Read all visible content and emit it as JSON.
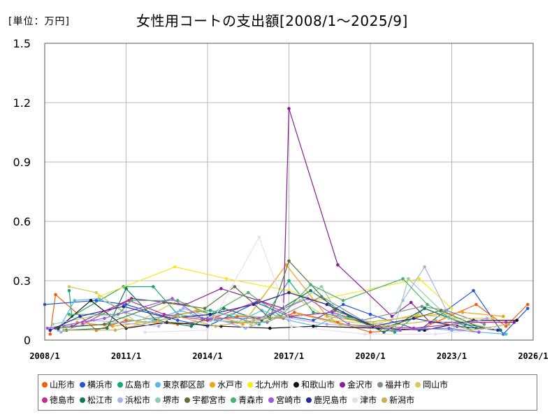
{
  "unit_label": "[単位：万円]",
  "colors": {
    "山形市": "#f25c0a",
    "横浜市": "#1f56d6",
    "広島市": "#13a874",
    "東京都区部": "#5ab8e6",
    "水戸市": "#f2a10f",
    "北九州市": "#f8e61a",
    "和歌山市": "#111111",
    "金沢市": "#8a1a96",
    "福井市": "#7f8c93",
    "岡山市": "#d9c85a",
    "徳島市": "#c2299e",
    "松江市": "#0f7a55",
    "浜松市": "#a7b3e6",
    "堺市": "#8fd1a6",
    "宇都宮市": "#5b7337",
    "青森市": "#4fb06a",
    "宮崎市": "#9b59e0",
    "鹿児島市": "#27289c",
    "津市": "#eadcea",
    "新潟市": "#c7b158"
  },
  "chart_data": {
    "type": "line",
    "title": "女性用コートの支出額[2008/1～2025/9]",
    "xlabel": "",
    "ylabel": "",
    "x_unit": "year",
    "xlim": [
      2008.0,
      2026.0
    ],
    "ylim": [
      0,
      1.5
    ],
    "y_ticks": [
      "0",
      "0.3",
      "0.6",
      "0.9",
      "1.2",
      "1.5"
    ],
    "y_tick_values": [
      0,
      0.3,
      0.6,
      0.9,
      1.2,
      1.5
    ],
    "x_ticks": [
      "2008/1",
      "2011/1",
      "2014/1",
      "2017/1",
      "2020/1",
      "2023/1",
      "2026/1"
    ],
    "x_tick_values": [
      2008,
      2011,
      2014,
      2017,
      2020,
      2023,
      2026
    ],
    "grid": true,
    "legend_position": "bottom",
    "legend_rows": [
      [
        "山形市",
        "横浜市",
        "広島市",
        "東京都区部",
        "水戸市",
        "北九州市",
        "和歌山市",
        "金沢市",
        "福井市",
        "岡山市"
      ],
      [
        "徳島市",
        "松江市",
        "浜松市",
        "堺市",
        "宇都宮市",
        "青森市",
        "宮崎市",
        "鹿児島市",
        "津市",
        "新潟市"
      ]
    ],
    "series": [
      {
        "name": "山形市",
        "x": [
          2008.2,
          2008.4,
          2009.9,
          2011.0,
          2012.9,
          2015.1,
          2016.8,
          2017.2,
          2018.8,
          2020.0,
          2021.9,
          2023.9,
          2025.0,
          2025.8
        ],
        "y": [
          0.03,
          0.23,
          0.05,
          0.1,
          0.08,
          0.12,
          0.11,
          0.14,
          0.09,
          0.04,
          0.06,
          0.18,
          0.07,
          0.18
        ]
      },
      {
        "name": "横浜市",
        "x": [
          2008.0,
          2009.9,
          2011.0,
          2012.9,
          2014.0,
          2015.8,
          2017.0,
          2017.9,
          2019.0,
          2020.0,
          2021.8,
          2023.8,
          2024.9,
          2025.8
        ],
        "y": [
          0.18,
          0.2,
          0.18,
          0.1,
          0.07,
          0.19,
          0.12,
          0.1,
          0.18,
          0.13,
          0.05,
          0.25,
          0.03,
          0.16
        ]
      },
      {
        "name": "広島市",
        "x": [
          2008.9,
          2009.0,
          2010.9,
          2012.0,
          2012.9,
          2014.1,
          2015.9,
          2017.0,
          2017.9,
          2018.9,
          2020.9,
          2022.0,
          2023.9
        ],
        "y": [
          0.25,
          0.12,
          0.27,
          0.27,
          0.13,
          0.15,
          0.08,
          0.3,
          0.14,
          0.12,
          0.04,
          0.16,
          0.06
        ]
      },
      {
        "name": "東京都区部",
        "x": [
          2008.5,
          2009.1,
          2010.0,
          2011.0,
          2012.0,
          2013.0,
          2014.1,
          2015.1,
          2016.0,
          2017.0,
          2018.0,
          2019.0,
          2020.0,
          2021.0,
          2022.0,
          2023.0,
          2024.0,
          2025.0
        ],
        "y": [
          0.05,
          0.2,
          0.21,
          0.14,
          0.1,
          0.15,
          0.1,
          0.09,
          0.15,
          0.1,
          0.07,
          0.14,
          0.07,
          0.05,
          0.06,
          0.05,
          0.04,
          0.03
        ]
      },
      {
        "name": "水戸市",
        "x": [
          2009.2,
          2010.5,
          2012.2,
          2013.6,
          2015.3,
          2016.9,
          2018.4,
          2019.9,
          2021.7,
          2023.4,
          2024.9
        ],
        "y": [
          0.09,
          0.07,
          0.1,
          0.15,
          0.08,
          0.38,
          0.12,
          0.09,
          0.12,
          0.14,
          0.12
        ]
      },
      {
        "name": "北九州市",
        "x": [
          2010.0,
          2012.8,
          2014.7,
          2017.0,
          2018.0,
          2021.8,
          2023.0
        ],
        "y": [
          0.22,
          0.37,
          0.31,
          0.25,
          0.2,
          0.31,
          0.16
        ]
      },
      {
        "name": "和歌山市",
        "x": [
          2008.5,
          2009.7,
          2011.0,
          2012.5,
          2014.5,
          2016.3,
          2017.9,
          2020.3,
          2022.0,
          2023.8,
          2025.4
        ],
        "y": [
          0.06,
          0.2,
          0.06,
          0.09,
          0.07,
          0.06,
          0.07,
          0.06,
          0.05,
          0.1,
          0.1
        ]
      },
      {
        "name": "金沢市",
        "x": [
          2009.0,
          2011.2,
          2013.2,
          2014.5,
          2016.8,
          2017.0,
          2018.8,
          2020.8,
          2021.5,
          2022.2,
          2025.3
        ],
        "y": [
          0.07,
          0.21,
          0.18,
          0.26,
          0.16,
          1.17,
          0.38,
          0.12,
          0.19,
          0.09,
          0.09
        ]
      },
      {
        "name": "福井市",
        "x": [
          2008.7,
          2010.4,
          2012.9,
          2014.9,
          2016.2,
          2018.2,
          2019.7,
          2021.9,
          2022.8,
          2024.2
        ],
        "y": [
          0.07,
          0.08,
          0.13,
          0.09,
          0.09,
          0.22,
          0.1,
          0.17,
          0.15,
          0.08
        ]
      },
      {
        "name": "岡山市",
        "x": [
          2008.9,
          2009.9,
          2011.4,
          2012.9,
          2014.2,
          2015.6,
          2017.4,
          2018.6,
          2020.1,
          2021.7,
          2023.1,
          2024.5
        ],
        "y": [
          0.27,
          0.24,
          0.09,
          0.2,
          0.12,
          0.08,
          0.2,
          0.1,
          0.08,
          0.13,
          0.11,
          0.11
        ]
      },
      {
        "name": "徳島市",
        "x": [
          2009.4,
          2011.1,
          2012.4,
          2014.0,
          2015.9,
          2017.1,
          2018.6,
          2020.2,
          2021.6,
          2023.7,
          2025.0
        ],
        "y": [
          0.08,
          0.2,
          0.13,
          0.1,
          0.2,
          0.12,
          0.14,
          0.07,
          0.06,
          0.09,
          0.09
        ]
      },
      {
        "name": "松江市",
        "x": [
          2008.8,
          2010.3,
          2011.0,
          2012.1,
          2013.4,
          2014.6,
          2016.0,
          2017.8,
          2019.2,
          2020.5,
          2022.0,
          2023.5,
          2024.8
        ],
        "y": [
          0.05,
          0.06,
          0.26,
          0.1,
          0.07,
          0.16,
          0.1,
          0.25,
          0.12,
          0.04,
          0.16,
          0.08,
          0.05
        ]
      },
      {
        "name": "浜松市",
        "x": [
          2008.6,
          2009.8,
          2012.2,
          2013.1,
          2015.4,
          2016.6,
          2018.4,
          2020.6,
          2021.2,
          2022.0,
          2023.1,
          2024.3
        ],
        "y": [
          0.04,
          0.1,
          0.07,
          0.16,
          0.06,
          0.12,
          0.08,
          0.06,
          0.2,
          0.37,
          0.07,
          0.11
        ]
      },
      {
        "name": "堺市",
        "x": [
          2008.3,
          2010.1,
          2011.7,
          2013.1,
          2014.9,
          2016.4,
          2018.2,
          2018.9,
          2020.9,
          2021.4,
          2022.9,
          2024.4
        ],
        "y": [
          0.08,
          0.13,
          0.09,
          0.12,
          0.13,
          0.11,
          0.27,
          0.12,
          0.07,
          0.31,
          0.11,
          0.06
        ]
      },
      {
        "name": "宇都宮市",
        "x": [
          2008.4,
          2010.2,
          2012.4,
          2013.9,
          2015.0,
          2016.3,
          2017.0,
          2018.7,
          2020.4,
          2022.6,
          2024.1
        ],
        "y": [
          0.06,
          0.08,
          0.19,
          0.16,
          0.27,
          0.11,
          0.4,
          0.15,
          0.06,
          0.15,
          0.06
        ]
      },
      {
        "name": "青森市",
        "x": [
          2008.9,
          2010.7,
          2011.2,
          2012.9,
          2014.1,
          2015.5,
          2016.7,
          2017.8,
          2019.0,
          2021.2,
          2022.1,
          2023.6
        ],
        "y": [
          0.13,
          0.13,
          0.2,
          0.2,
          0.13,
          0.24,
          0.12,
          0.28,
          0.2,
          0.31,
          0.18,
          0.06
        ]
      },
      {
        "name": "宮崎市",
        "x": [
          2008.1,
          2010.2,
          2012.7,
          2013.8,
          2015.9,
          2017.7,
          2019.2,
          2021.1,
          2022.9,
          2024.0
        ],
        "y": [
          0.06,
          0.11,
          0.21,
          0.11,
          0.11,
          0.21,
          0.08,
          0.05,
          0.06,
          0.04
        ]
      },
      {
        "name": "鹿児島市",
        "x": [
          2008.2,
          2009.3,
          2010.9,
          2012.6,
          2014.1,
          2015.7,
          2017.0,
          2018.4,
          2020.1,
          2021.6,
          2023.2,
          2024.7
        ],
        "y": [
          0.05,
          0.12,
          0.17,
          0.11,
          0.13,
          0.18,
          0.24,
          0.18,
          0.07,
          0.11,
          0.07,
          0.05
        ]
      },
      {
        "name": "津市",
        "x": [
          2011.7,
          2014.0,
          2015.9,
          2017.1,
          2019.8,
          2022.4,
          2024.6
        ],
        "y": [
          0.04,
          0.05,
          0.52,
          0.07,
          0.03,
          0.03,
          0.06
        ]
      },
      {
        "name": "新潟市",
        "x": [
          2008.7,
          2010.6,
          2012.9,
          2014.3,
          2015.7,
          2017.4,
          2018.9,
          2020.5,
          2022.4,
          2023.7,
          2025.1
        ],
        "y": [
          0.05,
          0.05,
          0.12,
          0.07,
          0.1,
          0.13,
          0.08,
          0.07,
          0.1,
          0.05,
          0.08
        ]
      }
    ]
  }
}
